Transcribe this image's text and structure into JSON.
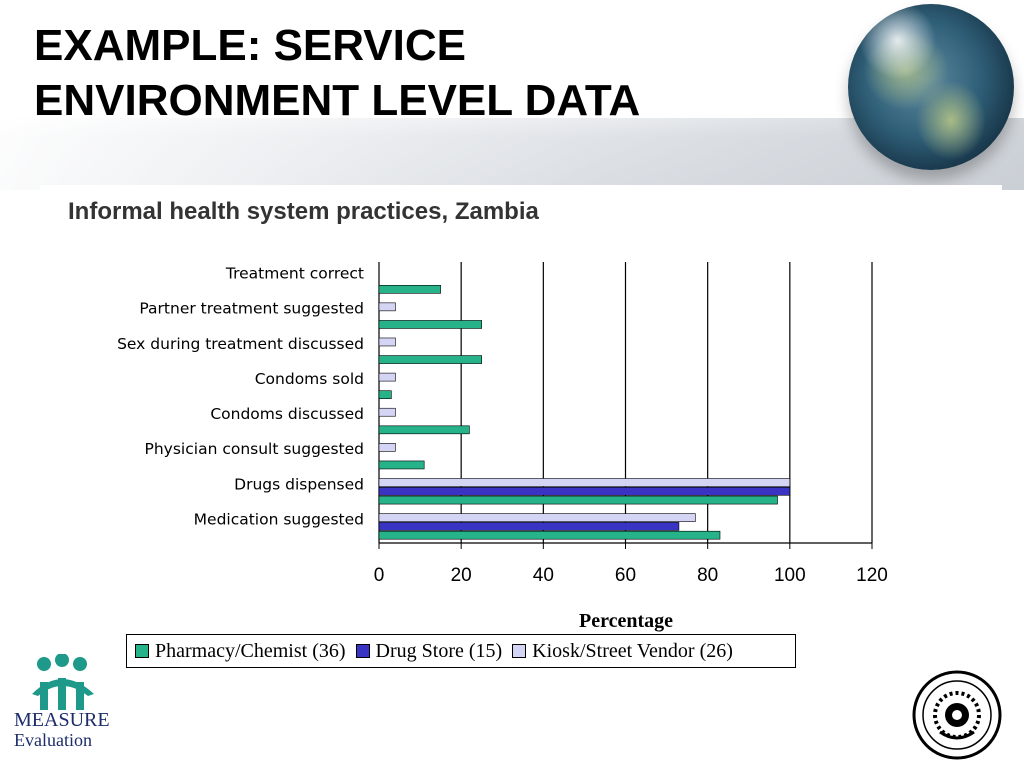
{
  "slide": {
    "title_line1": "EXAMPLE: SERVICE",
    "title_line2": "ENVIRONMENT LEVEL DATA"
  },
  "chart_data": {
    "type": "bar",
    "orientation": "horizontal",
    "title": "Informal health system practices, Zambia",
    "xlabel": "Percentage",
    "ylabel": "",
    "xlim": [
      0,
      120
    ],
    "xticks": [
      0,
      20,
      40,
      60,
      80,
      100,
      120
    ],
    "grid": "vertical",
    "legend_position": "bottom",
    "categories": [
      "Treatment correct",
      "Partner treatment suggested",
      "Sex during treatment discussed",
      "Condoms sold",
      "Condoms discussed",
      "Physician consult suggested",
      "Drugs dispensed",
      "Medication suggested"
    ],
    "series": [
      {
        "name": "Pharmacy/Chemist (36)",
        "color": "#26b38a",
        "values": [
          15,
          25,
          25,
          3,
          22,
          11,
          97,
          83
        ]
      },
      {
        "name": "Drug Store (15)",
        "color": "#3a34c4",
        "values": [
          null,
          null,
          null,
          null,
          null,
          null,
          100,
          73
        ]
      },
      {
        "name": "Kiosk/Street Vendor (26)",
        "color": "#d4d4f5",
        "values": [
          null,
          4,
          4,
          4,
          4,
          4,
          100,
          77
        ]
      }
    ]
  },
  "logos": {
    "left_line1": "MEASURE",
    "left_line2": "Evaluation"
  }
}
